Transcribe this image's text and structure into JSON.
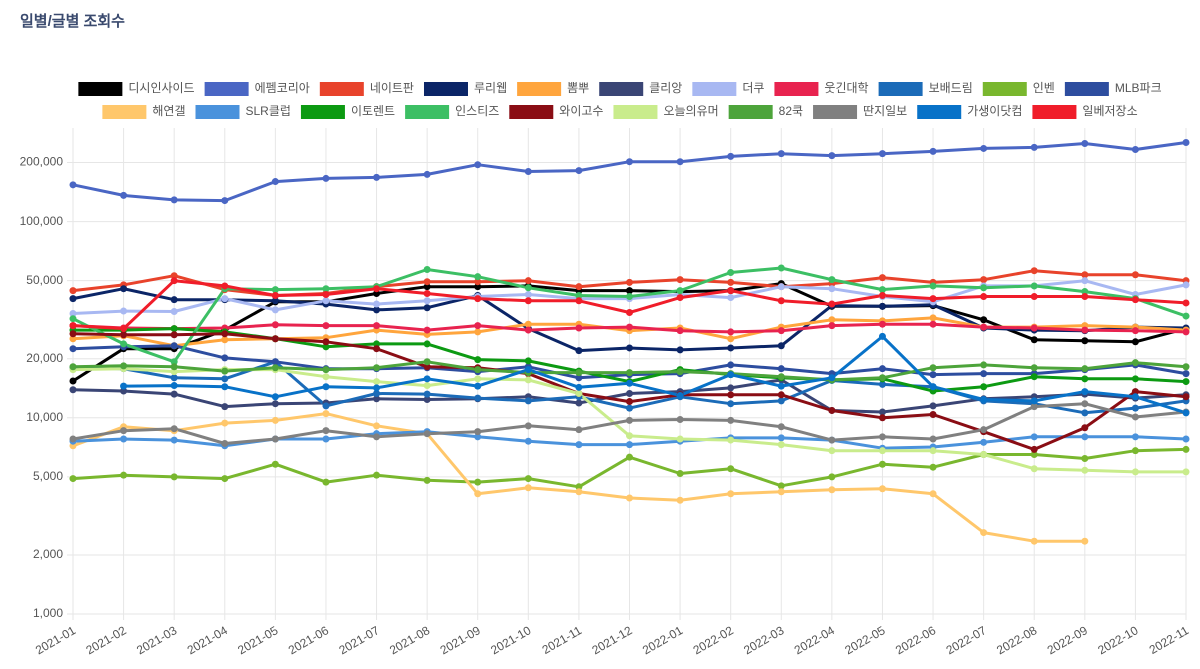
{
  "chart_data": {
    "type": "line",
    "title": "일별/글별 조회수",
    "log_scale": true,
    "grid": true,
    "legend": "top",
    "categories": [
      "2021-01",
      "2021-02",
      "2021-03",
      "2021-04",
      "2021-05",
      "2021-06",
      "2021-07",
      "2021-08",
      "2021-09",
      "2021-10",
      "2021-11",
      "2021-12",
      "2022-01",
      "2022-02",
      "2022-03",
      "2022-04",
      "2022-05",
      "2022-06",
      "2022-07",
      "2022-08",
      "2022-09",
      "2022-10",
      "2022-11"
    ],
    "ylim": [
      1000,
      300000
    ],
    "yticks": [
      {
        "value": 1000,
        "label": "1,000"
      },
      {
        "value": 2000,
        "label": "2,000"
      },
      {
        "value": 5000,
        "label": "5,000"
      },
      {
        "value": 10000,
        "label": "10,000"
      },
      {
        "value": 20000,
        "label": "20,000"
      },
      {
        "value": 50000,
        "label": "50,000"
      },
      {
        "value": 100000,
        "label": "100,000"
      },
      {
        "value": 200000,
        "label": "200,000"
      }
    ],
    "series": [
      {
        "name": "디시인사이드",
        "color": "#000000",
        "values": [
          15400,
          22500,
          22500,
          28000,
          39000,
          39000,
          43000,
          46600,
          46600,
          47000,
          44500,
          44500,
          44000,
          44500,
          48300,
          37000,
          37000,
          37300,
          31600,
          25000,
          24700,
          24400,
          28500
        ]
      },
      {
        "name": "에펨코리아",
        "color": "#4a66c4",
        "values": [
          154000,
          136000,
          129000,
          128000,
          160000,
          166000,
          168000,
          174000,
          195000,
          180000,
          182000,
          202000,
          202000,
          215000,
          222000,
          217000,
          222000,
          228000,
          236000,
          239000,
          250000,
          233000,
          253000
        ]
      },
      {
        "name": "네이트판",
        "color": "#e8432b",
        "values": [
          44500,
          47600,
          53000,
          45000,
          42000,
          43000,
          46600,
          49400,
          49400,
          50000,
          46600,
          49000,
          50600,
          49000,
          46600,
          48300,
          51800,
          49000,
          50600,
          56200,
          53600,
          53600,
          50000
        ]
      },
      {
        "name": "루리웹",
        "color": "#0b2567",
        "values": [
          40500,
          45500,
          40000,
          40000,
          39500,
          38000,
          35500,
          36400,
          42000,
          28500,
          22000,
          22700,
          22200,
          22700,
          23300,
          37300,
          37000,
          37700,
          28700,
          28000,
          27800,
          29000,
          28700
        ]
      },
      {
        "name": "뽐뿌",
        "color": "#ffa53d",
        "values": [
          25300,
          26200,
          23300,
          25000,
          25300,
          25600,
          28000,
          26600,
          27400,
          30000,
          30000,
          27800,
          28700,
          25300,
          29000,
          31600,
          31200,
          32300,
          29000,
          29000,
          29500,
          29000,
          28000
        ]
      },
      {
        "name": "클리앙",
        "color": "#3a4575",
        "values": [
          13900,
          13700,
          13200,
          11400,
          11800,
          11900,
          12500,
          12400,
          12500,
          12800,
          11900,
          13300,
          13600,
          14200,
          15600,
          10900,
          10700,
          11500,
          12500,
          12800,
          13200,
          12600,
          13100
        ]
      },
      {
        "name": "더쿠",
        "color": "#a8b8f2",
        "values": [
          34000,
          35000,
          34800,
          40500,
          35500,
          39500,
          38000,
          39500,
          41500,
          42500,
          40500,
          40500,
          42500,
          41000,
          46600,
          45500,
          41500,
          39000,
          47000,
          47000,
          50000,
          42500,
          47600
        ]
      },
      {
        "name": "웃긴대학",
        "color": "#e8234f",
        "values": [
          29500,
          28700,
          28500,
          28700,
          29800,
          29500,
          29500,
          28000,
          29500,
          28000,
          28700,
          29000,
          27800,
          27400,
          27800,
          29500,
          30000,
          30000,
          29000,
          28700,
          28000,
          27800,
          27400
        ]
      },
      {
        "name": "보배드림",
        "color": "#1b6bb8",
        "values": [
          18000,
          17800,
          16000,
          15800,
          19300,
          11500,
          13300,
          13200,
          12600,
          12200,
          12800,
          11200,
          12800,
          11800,
          12200,
          15500,
          14800,
          14400,
          12200,
          11800,
          10600,
          11200,
          12200
        ]
      },
      {
        "name": "인벤",
        "color": "#79b72e",
        "values": [
          4900,
          5100,
          5000,
          4900,
          5800,
          4700,
          5100,
          4800,
          4700,
          4900,
          4450,
          6300,
          5200,
          5500,
          4500,
          5000,
          5800,
          5600,
          6500,
          6500,
          6200,
          6800,
          6900
        ]
      },
      {
        "name": "MLB파크",
        "color": "#2d4d9f",
        "values": [
          22500,
          23000,
          23300,
          20200,
          19300,
          17800,
          17800,
          18000,
          17200,
          18200,
          16000,
          16600,
          16800,
          18600,
          17800,
          16800,
          17800,
          16600,
          16800,
          16800,
          17600,
          18600,
          16800
        ]
      },
      {
        "name": "해연갤",
        "color": "#ffc76b",
        "values": [
          7200,
          9000,
          8600,
          9400,
          9700,
          10500,
          9100,
          8300,
          4100,
          4400,
          4200,
          3900,
          3800,
          4100,
          4200,
          4300,
          4350,
          4100,
          2600,
          2350,
          2350,
          null,
          null
        ]
      },
      {
        "name": "SLR클럽",
        "color": "#4a92dc",
        "values": [
          7600,
          7800,
          7700,
          7200,
          7800,
          7800,
          8300,
          8500,
          8000,
          7600,
          7300,
          7300,
          7600,
          7900,
          7900,
          7700,
          7000,
          7100,
          7500,
          8000,
          8000,
          8000,
          7800
        ]
      },
      {
        "name": "이토렌트",
        "color": "#0c9a12",
        "values": [
          28000,
          28000,
          28500,
          27400,
          25300,
          23000,
          23800,
          23800,
          19800,
          19500,
          17300,
          15300,
          17600,
          16600,
          16000,
          15600,
          15800,
          13700,
          14400,
          16200,
          15800,
          15800,
          15300
        ]
      },
      {
        "name": "인스티즈",
        "color": "#3cbf64",
        "values": [
          32000,
          23800,
          19300,
          45500,
          45000,
          45500,
          46600,
          57000,
          52400,
          46000,
          42000,
          41500,
          44500,
          55000,
          58000,
          50600,
          45000,
          47000,
          46000,
          47000,
          44000,
          40500,
          33000
        ]
      },
      {
        "name": "와이고수",
        "color": "#8a0d14",
        "values": [
          26800,
          26500,
          26500,
          26800,
          25300,
          24400,
          22500,
          18200,
          18000,
          16800,
          13300,
          12100,
          13100,
          13100,
          13100,
          10900,
          10000,
          10400,
          8500,
          6900,
          8900,
          13600,
          12800
        ]
      },
      {
        "name": "오늘의유머",
        "color": "#c9ec8c",
        "values": [
          17600,
          17800,
          17200,
          17600,
          17600,
          16200,
          15300,
          14600,
          15800,
          15600,
          13300,
          8100,
          7800,
          7700,
          7300,
          6800,
          6800,
          6800,
          6500,
          5500,
          5400,
          5300,
          5300
        ]
      },
      {
        "name": "82쿡",
        "color": "#4da43b",
        "values": [
          18200,
          18400,
          18200,
          17300,
          18000,
          17600,
          18000,
          19300,
          17600,
          17000,
          17000,
          17000,
          17200,
          16800,
          16200,
          15600,
          16000,
          18000,
          18600,
          18000,
          17800,
          19100,
          18200
        ]
      },
      {
        "name": "딴지일보",
        "color": "#808080",
        "values": [
          7800,
          8600,
          8800,
          7400,
          7800,
          8600,
          8000,
          8300,
          8500,
          9100,
          8700,
          9700,
          9800,
          9700,
          9000,
          7700,
          8000,
          7800,
          8700,
          11400,
          11800,
          10100,
          10700
        ]
      },
      {
        "name": "가생이닷컴",
        "color": "#0872c8",
        "values": [
          null,
          14500,
          14600,
          14400,
          12800,
          14400,
          14200,
          15800,
          14500,
          17600,
          14300,
          15000,
          13000,
          16600,
          14500,
          16000,
          26000,
          14400,
          12400,
          12200,
          13600,
          12800,
          10600
        ]
      },
      {
        "name": "일베저장소",
        "color": "#f01d2a",
        "values": [
          29500,
          28500,
          50000,
          47000,
          42000,
          42500,
          45500,
          43000,
          40500,
          39500,
          39500,
          34400,
          41000,
          44500,
          39500,
          38000,
          42000,
          40500,
          41500,
          41500,
          41500,
          40000,
          38500
        ]
      }
    ]
  }
}
